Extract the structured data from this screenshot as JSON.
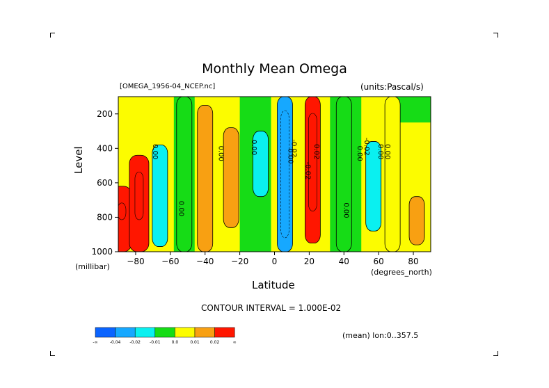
{
  "title": "Monthly Mean Omega",
  "dataset_label": "[OMEGA_1956-04_NCEP.nc]",
  "units_label": "(units:Pascal/s)",
  "contour_interval": "CONTOUR INTERVAL = 1.000E-02",
  "mean_note": "(mean) lon:0..357.5",
  "y_unit": "(millibar)",
  "x_unit": "(degrees_north)",
  "colors": {
    "lt_neg": "#0a64ff",
    "neg04": "#16a8ff",
    "neg02": "#0af0f0",
    "neg01": "#16dc16",
    "zero": "#fcfc00",
    "pos01": "#f8a012",
    "pos02": "#ff1600",
    "inner_dark": "#0b3a8f"
  },
  "colorbar": {
    "labels": [
      "-∞",
      "-0.04",
      "-0.02",
      "-0.01",
      "0.0",
      "0.01",
      "0.02",
      "∞"
    ]
  },
  "contour_labels": [
    "0.00",
    "0.00",
    "0.00",
    "0.00",
    "0.00",
    "-0.02",
    "-0.02",
    "0.02",
    "0.00",
    "0.00",
    "-0.02",
    "0.00",
    "0.00"
  ],
  "chart_data": {
    "type": "heatmap",
    "title": "Monthly Mean Omega",
    "xlabel": "Latitude",
    "ylabel": "Level",
    "x_ticks": [
      -80,
      -60,
      -40,
      -20,
      0,
      20,
      40,
      60,
      80
    ],
    "y_ticks": [
      200,
      400,
      600,
      800,
      1000
    ],
    "xlim": [
      -90,
      90
    ],
    "ylim": [
      1000,
      100
    ],
    "units": "Pascal/s",
    "contour_interval": 0.01,
    "levels": [
      -0.04,
      -0.02,
      -0.01,
      0.0,
      0.01,
      0.02
    ],
    "features": [
      {
        "lat": -88,
        "p_top": 620,
        "p_bottom": 1000,
        "value": 0.05
      },
      {
        "lat": -78,
        "p_top": 440,
        "p_bottom": 1000,
        "value": 0.03
      },
      {
        "lat": -66,
        "p_top": 380,
        "p_bottom": 970,
        "value": -0.02
      },
      {
        "lat": -52,
        "p_top": 100,
        "p_bottom": 1000,
        "value": -0.005
      },
      {
        "lat": -40,
        "p_top": 150,
        "p_bottom": 1000,
        "value": 0.005
      },
      {
        "lat": -25,
        "p_top": 280,
        "p_bottom": 860,
        "value": 0.015
      },
      {
        "lat": -8,
        "p_top": 300,
        "p_bottom": 680,
        "value": -0.015
      },
      {
        "lat": 6,
        "p_top": 100,
        "p_bottom": 1000,
        "value": -0.04
      },
      {
        "lat": 22,
        "p_top": 100,
        "p_bottom": 950,
        "value": 0.02
      },
      {
        "lat": 40,
        "p_top": 100,
        "p_bottom": 1000,
        "value": -0.005
      },
      {
        "lat": 57,
        "p_top": 360,
        "p_bottom": 880,
        "value": -0.02
      },
      {
        "lat": 68,
        "p_top": 100,
        "p_bottom": 1000,
        "value": 0.0
      },
      {
        "lat": 82,
        "p_top": 680,
        "p_bottom": 960,
        "value": 0.01
      }
    ]
  }
}
